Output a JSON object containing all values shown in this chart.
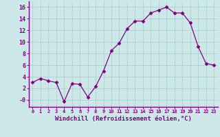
{
  "x": [
    0,
    1,
    2,
    3,
    4,
    5,
    6,
    7,
    8,
    9,
    10,
    11,
    12,
    13,
    14,
    15,
    16,
    17,
    18,
    19,
    20,
    21,
    22,
    23
  ],
  "y": [
    3.0,
    3.7,
    3.3,
    3.0,
    -0.3,
    2.8,
    2.7,
    0.5,
    2.3,
    5.0,
    8.5,
    9.8,
    12.3,
    13.6,
    13.6,
    15.0,
    15.5,
    16.0,
    15.0,
    15.0,
    13.3,
    9.2,
    6.3,
    6.0
  ],
  "line_color": "#800080",
  "marker": "D",
  "marker_size": 2.5,
  "background_color": "#cce8e8",
  "grid_color": "#aacccc",
  "xlabel": "Windchill (Refroidissement éolien,°C)",
  "tick_color": "#800080",
  "ylim": [
    -1.2,
    17.0
  ],
  "xlim": [
    -0.5,
    23.5
  ],
  "yticks": [
    0,
    2,
    4,
    6,
    8,
    10,
    12,
    14,
    16
  ],
  "ytick_labels": [
    "-0",
    "2",
    "4",
    "6",
    "8",
    "10",
    "12",
    "14",
    "16"
  ],
  "xticks": [
    0,
    1,
    2,
    3,
    4,
    5,
    6,
    7,
    8,
    9,
    10,
    11,
    12,
    13,
    14,
    15,
    16,
    17,
    18,
    19,
    20,
    21,
    22,
    23
  ]
}
